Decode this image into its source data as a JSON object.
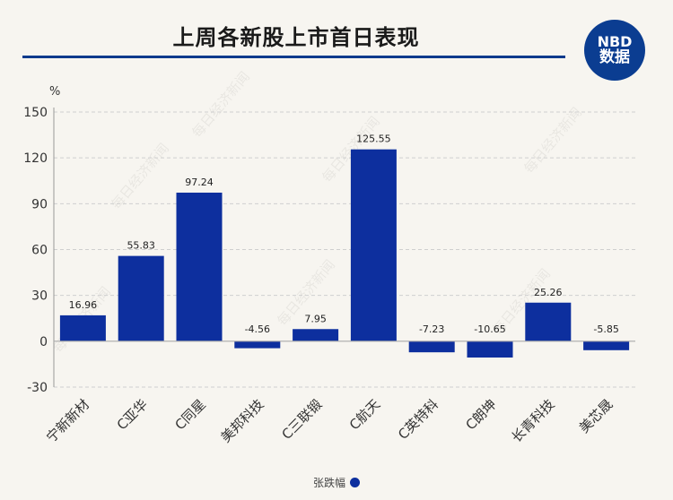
{
  "title": "上周各新股上市首日表现",
  "logo": {
    "line1": "NBD",
    "line2": "数据"
  },
  "watermark_text": "每日经济新闻",
  "legend_label": "张跌幅",
  "colors": {
    "bar": "#0d2f9e",
    "title_rule": "#0a3a8c",
    "grid": "#cfcfcf",
    "background": "#f7f5f0"
  },
  "chart_data": {
    "type": "bar",
    "title": "上周各新股上市首日表现",
    "ylabel": "%",
    "ylim": [
      -30,
      150
    ],
    "yticks": [
      150,
      120,
      90,
      60,
      30,
      0,
      -30
    ],
    "grid": true,
    "legend_position": "bottom",
    "categories": [
      "宁新新材",
      "C亚华",
      "C同星",
      "美邦科技",
      "C三联锻",
      "C航天",
      "C英特科",
      "C朗坤",
      "长青科技",
      "美芯晟"
    ],
    "series": [
      {
        "name": "张跌幅",
        "values": [
          16.96,
          55.83,
          97.24,
          -4.56,
          7.95,
          125.55,
          -7.23,
          -10.65,
          25.26,
          -5.85
        ]
      }
    ],
    "value_labels": [
      "16.96",
      "55.83",
      "97.24",
      "-4.56",
      "7.95",
      "125.55",
      "-7.23",
      "-10.65",
      "25.26",
      "-5.85"
    ]
  }
}
